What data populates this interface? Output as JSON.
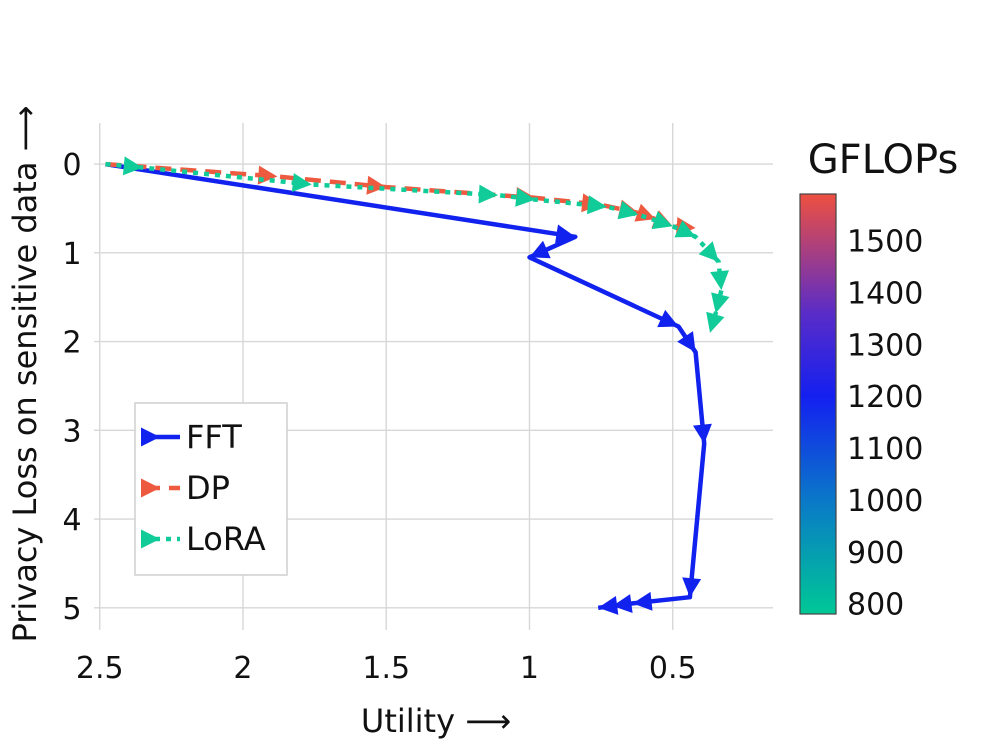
{
  "chart_data": {
    "type": "line",
    "xlabel": "Utility ⟶",
    "ylabel": "Privacy Loss on sensitive data ⟶",
    "x_reversed": true,
    "y_reversed": true,
    "xlim": [
      2.52,
      0.15
    ],
    "ylim": [
      -0.35,
      5.25
    ],
    "x_ticks": [
      2.5,
      2,
      1.5,
      1,
      0.5
    ],
    "x_tick_labels": [
      "2.5",
      "2",
      "1.5",
      "1",
      "0.5"
    ],
    "y_ticks": [
      0,
      1,
      2,
      3,
      4,
      5
    ],
    "y_tick_labels": [
      "0",
      "1",
      "2",
      "3",
      "4",
      "5"
    ],
    "grid": true,
    "legend_position": "lower-left",
    "series": [
      {
        "name": "FFT",
        "color": "#1122ee",
        "style": "solid",
        "x": [
          2.48,
          0.84,
          1.0,
          0.48,
          0.42,
          0.39,
          0.44,
          0.64,
          0.71,
          0.76
        ],
        "y": [
          0.0,
          0.82,
          1.05,
          1.83,
          2.12,
          3.15,
          4.88,
          4.95,
          4.98,
          5.0
        ]
      },
      {
        "name": "DP",
        "color": "#ee5a40",
        "style": "dashed",
        "x": [
          2.48,
          1.88,
          1.5,
          0.98,
          0.75,
          0.62,
          0.56,
          0.5,
          0.42
        ],
        "y": [
          0.0,
          0.14,
          0.26,
          0.38,
          0.46,
          0.55,
          0.62,
          0.7,
          0.72
        ]
      },
      {
        "name": "LoRA",
        "color": "#11cc99",
        "style": "dotted",
        "x": [
          2.48,
          2.35,
          1.76,
          1.11,
          0.98,
          0.73,
          0.62,
          0.5,
          0.42,
          0.34,
          0.33,
          0.35,
          0.37
        ],
        "y": [
          0.0,
          0.04,
          0.23,
          0.35,
          0.4,
          0.48,
          0.57,
          0.7,
          0.82,
          1.1,
          1.42,
          1.68,
          1.9
        ]
      }
    ],
    "colorbar": {
      "title": "GFLOPs",
      "ticks": [
        1500,
        1400,
        1300,
        1200,
        1100,
        1000,
        900,
        800
      ],
      "tick_labels": [
        "1500",
        "1400",
        "1300",
        "1200",
        "1100",
        "1000",
        "900",
        "800"
      ],
      "range": [
        780,
        1590
      ],
      "gradient": [
        {
          "value": 780,
          "color": "#00c896"
        },
        {
          "value": 1000,
          "color": "#0a78c8"
        },
        {
          "value": 1200,
          "color": "#1420f0"
        },
        {
          "value": 1360,
          "color": "#5a2cc8"
        },
        {
          "value": 1590,
          "color": "#ee5040"
        }
      ]
    }
  }
}
